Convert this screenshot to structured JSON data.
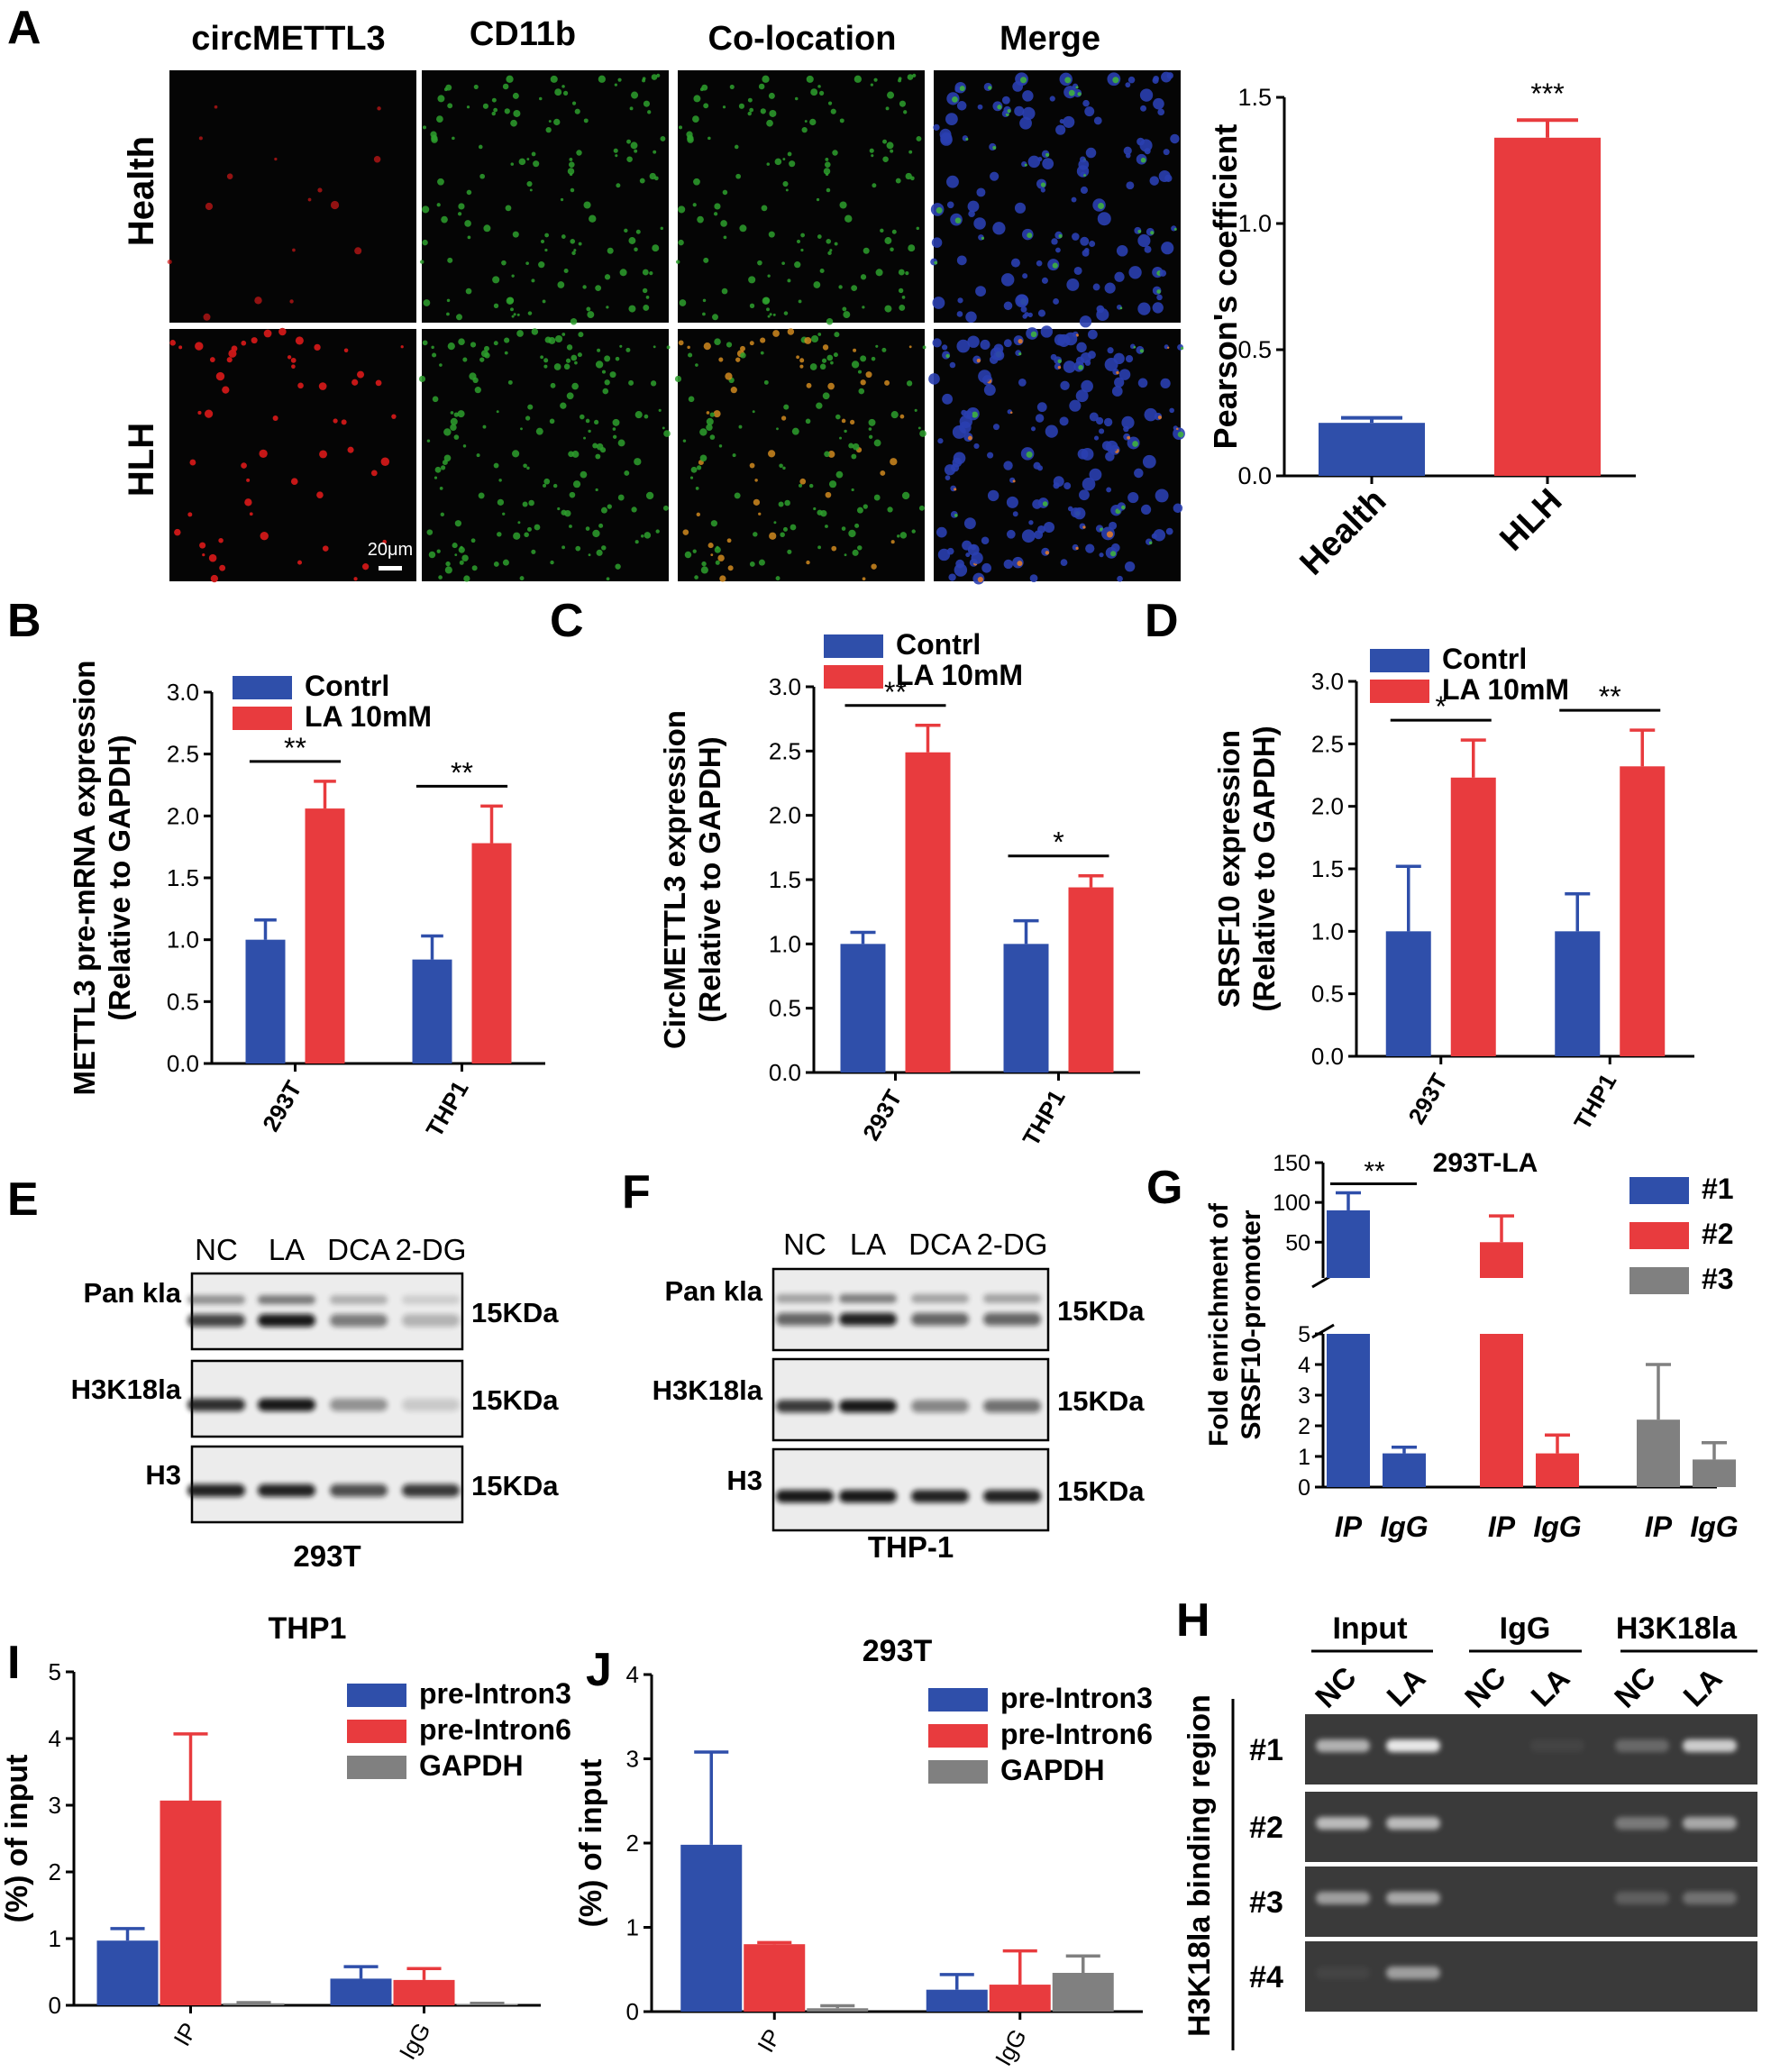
{
  "colors": {
    "blue": "#2f4faa",
    "red": "#e83b3e",
    "gray": "#808080"
  },
  "panel_letters": {
    "A": "A",
    "B": "B",
    "C": "C",
    "D": "D",
    "E": "E",
    "F": "F",
    "G": "G",
    "H": "H",
    "I": "I",
    "J": "J"
  },
  "micro": {
    "columns": [
      "circMETTL3",
      "CD11b",
      "Co-location",
      "Merge"
    ],
    "rows": [
      "Health",
      "HLH"
    ],
    "scale_bar": "20μm"
  },
  "chart_data": [
    {
      "id": "A",
      "type": "bar",
      "title": "",
      "ylabel": "Pearson's coefficient",
      "xlabel": "",
      "categories": [
        "Health",
        "HLH"
      ],
      "values": [
        0.21,
        1.34
      ],
      "errors": [
        0.02,
        0.07
      ],
      "colors": [
        "blue",
        "red"
      ],
      "ylim": [
        0,
        1.5
      ],
      "yticks": [
        "0.0",
        "0.5",
        "1.0",
        "1.5"
      ],
      "significance": [
        {
          "label": "***",
          "target": "HLH"
        }
      ]
    },
    {
      "id": "B",
      "type": "bar",
      "title": "",
      "ylabel": "METTL3 pre-mRNA expression",
      "ylabel2": "(Relative to GAPDH)",
      "categories": [
        "293T",
        "THP1"
      ],
      "series": [
        {
          "name": "Contrl",
          "color": "blue",
          "values": [
            1.0,
            0.84
          ],
          "errors": [
            0.16,
            0.19
          ]
        },
        {
          "name": "LA 10mM",
          "color": "red",
          "values": [
            2.06,
            1.78
          ],
          "errors": [
            0.22,
            0.3
          ]
        }
      ],
      "ylim": [
        0,
        3.0
      ],
      "yticks": [
        "0.0",
        "0.5",
        "1.0",
        "1.5",
        "2.0",
        "2.5",
        "3.0"
      ],
      "significance": [
        "**",
        "**"
      ]
    },
    {
      "id": "C",
      "type": "bar",
      "title": "",
      "ylabel": "CircMETTL3 expression",
      "ylabel2": "(Relative to GAPDH)",
      "categories": [
        "293T",
        "THP1"
      ],
      "series": [
        {
          "name": "Contrl",
          "color": "blue",
          "values": [
            1.0,
            1.0
          ],
          "errors": [
            0.09,
            0.18
          ]
        },
        {
          "name": "LA 10mM",
          "color": "red",
          "values": [
            2.49,
            1.44
          ],
          "errors": [
            0.21,
            0.09
          ]
        }
      ],
      "ylim": [
        0,
        3.0
      ],
      "yticks": [
        "0.0",
        "0.5",
        "1.0",
        "1.5",
        "2.0",
        "2.5",
        "3.0"
      ],
      "significance": [
        "**",
        "*"
      ]
    },
    {
      "id": "D",
      "type": "bar",
      "title": "",
      "ylabel": "SRSF10 expression",
      "ylabel2": "(Relative to GAPDH)",
      "categories": [
        "293T",
        "THP1"
      ],
      "series": [
        {
          "name": "Contrl",
          "color": "blue",
          "values": [
            1.0,
            1.0
          ],
          "errors": [
            0.52,
            0.3
          ]
        },
        {
          "name": "LA 10mM",
          "color": "red",
          "values": [
            2.23,
            2.32
          ],
          "errors": [
            0.3,
            0.29
          ]
        }
      ],
      "ylim": [
        0,
        3.0
      ],
      "yticks": [
        "0.0",
        "0.5",
        "1.0",
        "1.5",
        "2.0",
        "2.5",
        "3.0"
      ],
      "significance": [
        "*",
        "**"
      ]
    },
    {
      "id": "G",
      "type": "bar",
      "title": "293T-LA",
      "ylabel": "Fold enrichment of",
      "ylabel2": "SRSF10-promoter",
      "categories": [
        "IP",
        "IgG",
        "IP",
        "IgG",
        "IP",
        "IgG"
      ],
      "legend": [
        {
          "name": "#1",
          "color": "blue"
        },
        {
          "name": "#2",
          "color": "red"
        },
        {
          "name": "#3",
          "color": "gray"
        }
      ],
      "values": [
        90,
        1.1,
        50,
        1.1,
        2.2,
        0.9
      ],
      "errors": [
        22,
        0.2,
        33,
        0.6,
        1.8,
        0.55
      ],
      "colors": [
        "blue",
        "blue",
        "red",
        "red",
        "gray",
        "gray"
      ],
      "broken_axis": {
        "lower": [
          0,
          5
        ],
        "upper": [
          5,
          150
        ]
      },
      "yticks_lower": [
        "0",
        "1",
        "2",
        "3",
        "4",
        "5"
      ],
      "yticks_upper": [
        "50",
        "100",
        "150"
      ],
      "significance": [
        {
          "label": "**",
          "between": [
            0,
            1
          ]
        }
      ]
    },
    {
      "id": "I",
      "type": "bar",
      "title": "THP1",
      "ylabel": "(%) of input",
      "xlabel": "",
      "categories": [
        "IP",
        "IgG"
      ],
      "series": [
        {
          "name": "pre-Intron3",
          "color": "blue",
          "values": [
            0.97,
            0.4
          ],
          "errors": [
            0.18,
            0.18
          ]
        },
        {
          "name": "pre-Intron6",
          "color": "red",
          "values": [
            3.07,
            0.38
          ],
          "errors": [
            1.0,
            0.17
          ]
        },
        {
          "name": "GAPDH",
          "color": "gray",
          "values": [
            0.03,
            0.02
          ],
          "errors": [
            0.01,
            0.01
          ]
        }
      ],
      "ylim": [
        0,
        5
      ],
      "yticks": [
        "0",
        "1",
        "2",
        "3",
        "4",
        "5"
      ]
    },
    {
      "id": "J",
      "type": "bar",
      "title": "293T",
      "ylabel": "(%) of input",
      "xlabel": "",
      "categories": [
        "IP",
        "IgG"
      ],
      "series": [
        {
          "name": "pre-Intron3",
          "color": "blue",
          "values": [
            1.98,
            0.26
          ],
          "errors": [
            1.1,
            0.18
          ]
        },
        {
          "name": "pre-Intron6",
          "color": "red",
          "values": [
            0.8,
            0.32
          ],
          "errors": [
            0.02,
            0.4
          ]
        },
        {
          "name": "GAPDH",
          "color": "gray",
          "values": [
            0.04,
            0.46
          ],
          "errors": [
            0.03,
            0.2
          ]
        }
      ],
      "ylim": [
        0,
        4
      ],
      "yticks": [
        "0",
        "1",
        "2",
        "3",
        "4"
      ]
    }
  ],
  "blots": {
    "E": {
      "lanes": [
        "NC",
        "LA",
        "DCA",
        "2-DG"
      ],
      "rows": [
        {
          "label": "Pan kla",
          "size": "15KDa",
          "intensity": [
            0.75,
            0.95,
            0.5,
            0.25
          ]
        },
        {
          "label": "H3K18la",
          "size": "15KDa",
          "intensity": [
            0.85,
            0.95,
            0.4,
            0.15
          ]
        },
        {
          "label": "H3",
          "size": "15KDa",
          "intensity": [
            0.9,
            0.9,
            0.7,
            0.8
          ]
        }
      ],
      "cell_line": "293T"
    },
    "F": {
      "lanes": [
        "NC",
        "LA",
        "DCA",
        "2-DG"
      ],
      "rows": [
        {
          "label": "Pan kla",
          "size": "15KDa",
          "intensity": [
            0.6,
            0.9,
            0.6,
            0.6
          ]
        },
        {
          "label": "H3K18la",
          "size": "15KDa",
          "intensity": [
            0.8,
            0.95,
            0.45,
            0.55
          ]
        },
        {
          "label": "H3",
          "size": "15KDa",
          "intensity": [
            0.95,
            0.95,
            0.9,
            0.9
          ]
        }
      ],
      "cell_line": "THP-1"
    }
  },
  "gel": {
    "groups": [
      "Input",
      "IgG",
      "H3K18la"
    ],
    "lanes": [
      "NC",
      "LA",
      "NC",
      "LA",
      "NC",
      "LA"
    ],
    "rows": [
      "#1",
      "#2",
      "#3",
      "#4"
    ],
    "side_label": "H3K18la binding region",
    "intensity": [
      [
        0.65,
        0.95,
        0.0,
        0.05,
        0.25,
        0.8
      ],
      [
        0.7,
        0.7,
        0.0,
        0.0,
        0.35,
        0.6
      ],
      [
        0.55,
        0.6,
        0.0,
        0.0,
        0.2,
        0.3
      ],
      [
        0.05,
        0.55,
        0.0,
        0.0,
        0.0,
        0.0
      ]
    ]
  }
}
